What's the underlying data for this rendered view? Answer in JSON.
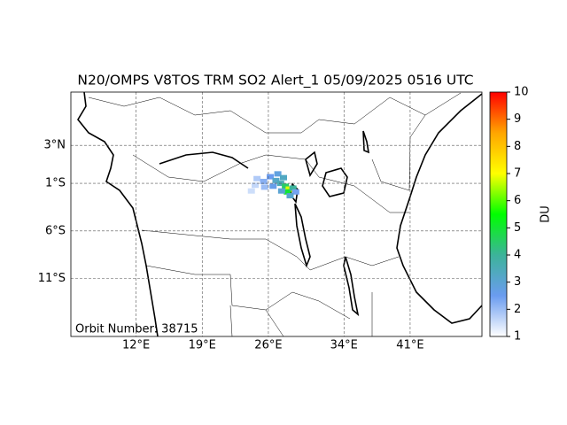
{
  "chart_data": {
    "type": "map",
    "title": "N20/OMPS V8TOS TRM SO2 Alert_1 05/09/2025 0516 UTC",
    "annotation": "Orbit Number: 38715",
    "xlim": [
      5.1,
      48.6
    ],
    "ylim": [
      -17.1,
      8.6
    ],
    "xticks": [
      {
        "value": 12,
        "label": "12°E"
      },
      {
        "value": 19,
        "label": "19°E"
      },
      {
        "value": 26,
        "label": "26°E"
      },
      {
        "value": 34,
        "label": "34°E"
      },
      {
        "value": 41,
        "label": "41°E"
      }
    ],
    "yticks": [
      {
        "value": 3,
        "label": "3°N"
      },
      {
        "value": -1,
        "label": "1°S"
      },
      {
        "value": -6,
        "label": "6°S"
      },
      {
        "value": -11,
        "label": "11°S"
      }
    ],
    "grid": true,
    "colorbar_label": "DU",
    "clim": [
      1,
      10
    ],
    "cticks": [
      1,
      2,
      3,
      4,
      5,
      6,
      7,
      8,
      9,
      10
    ],
    "colormap": [
      "#ffffff",
      "#6a9cf0",
      "#3cb39a",
      "#00ff00",
      "#ffff00",
      "#ffa500",
      "#ff0000"
    ],
    "cells": {
      "lon": [
        24.8,
        25.5,
        26.2,
        26.8,
        27.3,
        27.8,
        28.2,
        28.0,
        28.6,
        27.4,
        26.5,
        25.6,
        24.6,
        27.0,
        27.6,
        28.9,
        28.3,
        24.2
      ],
      "lat": [
        -0.5,
        -0.8,
        -0.3,
        -0.7,
        -1.0,
        -1.3,
        -1.6,
        -1.9,
        -1.5,
        -1.8,
        -1.3,
        -1.4,
        -1.2,
        0.0,
        -0.4,
        -1.9,
        -2.3,
        -1.8
      ],
      "values": [
        1.8,
        2.2,
        2.5,
        3.2,
        3.5,
        4.5,
        6.8,
        5.0,
        4.0,
        3.0,
        2.6,
        2.0,
        1.6,
        2.8,
        3.3,
        2.4,
        3.1,
        1.5
      ]
    }
  }
}
